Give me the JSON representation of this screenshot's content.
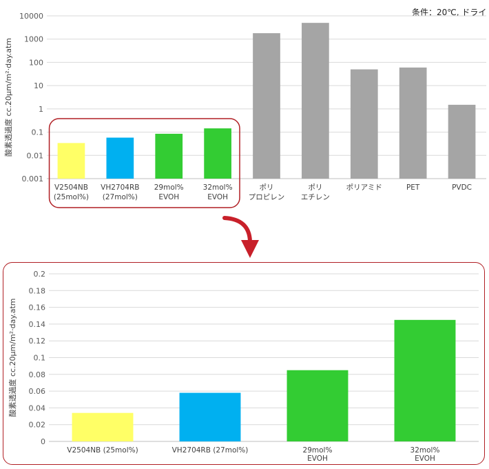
{
  "condition_note": "条件：20℃, ドライ",
  "colors": {
    "yellow": "#ffff66",
    "blue": "#00b0f0",
    "green": "#33cc33",
    "gray": "#a5a5a5",
    "highlight": "#b01e23"
  },
  "chart_data": [
    {
      "type": "bar",
      "scale": "log",
      "ylabel": "酸素透過度 cc.20μm/m²·day.atm",
      "yticks": [
        "0.001",
        "0.01",
        "0.1",
        "1",
        "10",
        "100",
        "1000",
        "10000"
      ],
      "ylim": [
        0.001,
        10000
      ],
      "grid": true,
      "categories": [
        {
          "lines": [
            "V2504NB",
            "(25mol%)"
          ]
        },
        {
          "lines": [
            "VH2704RB",
            "(27mol%)"
          ]
        },
        {
          "lines": [
            "29mol%",
            "EVOH"
          ]
        },
        {
          "lines": [
            "32mol%",
            "EVOH"
          ]
        },
        {
          "lines": [
            "ポリ",
            "プロピレン"
          ]
        },
        {
          "lines": [
            "ポリ",
            "エチレン"
          ]
        },
        {
          "lines": [
            "ポリアミド"
          ]
        },
        {
          "lines": [
            "PET"
          ]
        },
        {
          "lines": [
            "PVDC"
          ]
        }
      ],
      "values": [
        0.034,
        0.058,
        0.085,
        0.145,
        1800,
        5000,
        50,
        60,
        1.5
      ],
      "bar_colors": [
        "#ffff66",
        "#00b0f0",
        "#33cc33",
        "#33cc33",
        "#a5a5a5",
        "#a5a5a5",
        "#a5a5a5",
        "#a5a5a5",
        "#a5a5a5"
      ]
    },
    {
      "type": "bar",
      "scale": "linear",
      "ylabel": "酸素透過度 cc.20μm/m²·day.atm",
      "yticks": [
        "0",
        "0.02",
        "0.04",
        "0.06",
        "0.08",
        "0.1",
        "0.12",
        "0.14",
        "0.16",
        "0.18",
        "0.2"
      ],
      "ylim": [
        0,
        0.2
      ],
      "grid": true,
      "categories": [
        {
          "lines": [
            "V2504NB (25mol%)"
          ]
        },
        {
          "lines": [
            "VH2704RB (27mol%)"
          ]
        },
        {
          "lines": [
            "29mol%",
            "EVOH"
          ]
        },
        {
          "lines": [
            "32mol%",
            "EVOH"
          ]
        }
      ],
      "values": [
        0.034,
        0.058,
        0.085,
        0.145
      ],
      "bar_colors": [
        "#ffff66",
        "#00b0f0",
        "#33cc33",
        "#33cc33"
      ]
    }
  ]
}
